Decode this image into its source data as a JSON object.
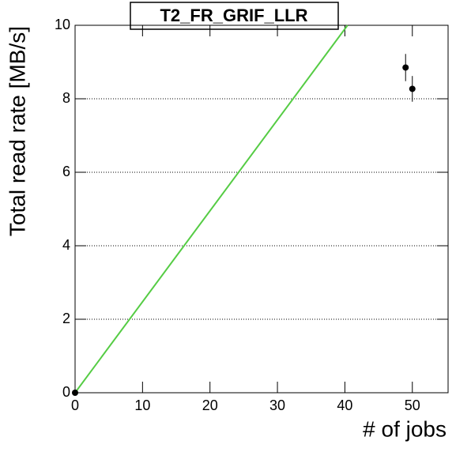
{
  "chart_data": {
    "type": "scatter",
    "title": "T2_FR_GRIF_LLR",
    "x_label": "# of jobs",
    "y_label": "Total read rate [MB/s]",
    "series": [
      {
        "x": [
          0,
          49,
          50
        ],
        "values": [
          0,
          8.85,
          8.27
        ],
        "errors": [
          0,
          0.37,
          0.35
        ],
        "color": "#000000"
      }
    ],
    "fit_line": {
      "x": [
        0,
        40.4
      ],
      "values": [
        0,
        10
      ],
      "color": "#55cc44"
    },
    "xlim": [
      0,
      55.3
    ],
    "ylim": [
      0,
      10
    ],
    "xticks": [
      0,
      10,
      20,
      30,
      40,
      50
    ],
    "yticks": [
      0,
      2,
      4,
      6,
      8,
      10
    ],
    "grid": "y"
  }
}
